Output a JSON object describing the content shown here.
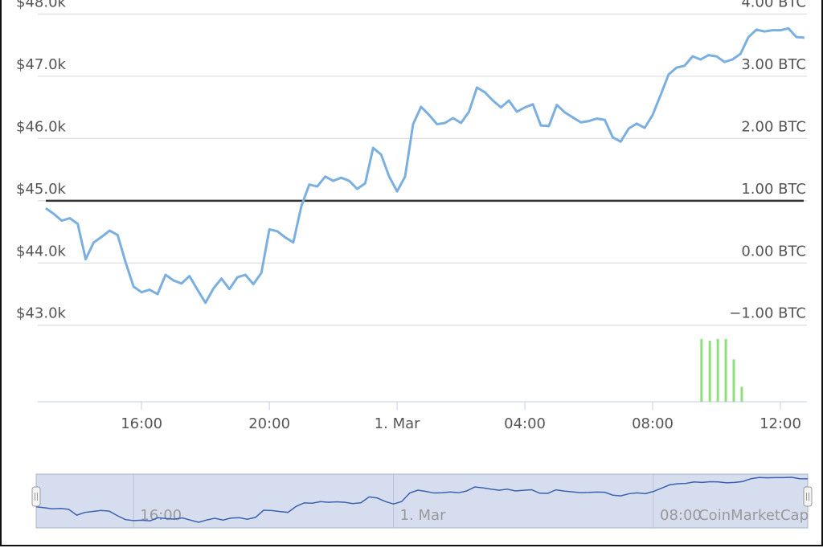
{
  "chart_data": {
    "type": "line",
    "xlim": [
      12.75,
      36.83
    ],
    "xticks": [
      {
        "value": 16,
        "label": "16:00"
      },
      {
        "value": 20,
        "label": "20:00"
      },
      {
        "value": 24,
        "label": "1. Mar"
      },
      {
        "value": 28,
        "label": "04:00"
      },
      {
        "value": 32,
        "label": "08:00"
      },
      {
        "value": 36,
        "label": "12:00"
      }
    ],
    "ylim": [
      41.77,
      48.0
    ],
    "yticks": [
      {
        "value": 43,
        "label": "$43.0k"
      },
      {
        "value": 44,
        "label": "$44.0k"
      },
      {
        "value": 45,
        "label": "$45.0k"
      },
      {
        "value": 46,
        "label": "$46.0k"
      },
      {
        "value": 47,
        "label": "$47.0k"
      },
      {
        "value": 48,
        "label": "$48.0k"
      }
    ],
    "y2lim": [
      -2.23,
      4.0
    ],
    "y2ticks": [
      {
        "value": -1,
        "label": "−1.00 BTC"
      },
      {
        "value": 0,
        "label": "0.00 BTC"
      },
      {
        "value": 1,
        "label": "1.00 BTC"
      },
      {
        "value": 2,
        "label": "2.00 BTC"
      },
      {
        "value": 3,
        "label": "3.00 BTC"
      },
      {
        "value": 4,
        "label": "4.00 BTC"
      }
    ],
    "grid": true,
    "reference_line": {
      "value": 45.0,
      "color": "#333333"
    },
    "series": [
      {
        "type": "line",
        "color": "#7aafdf",
        "x": [
          13.0,
          13.25,
          13.5,
          13.75,
          14.0,
          14.25,
          14.5,
          14.75,
          15.0,
          15.25,
          15.5,
          15.75,
          16.0,
          16.25,
          16.5,
          16.75,
          17.0,
          17.25,
          17.5,
          17.75,
          18.0,
          18.25,
          18.5,
          18.75,
          19.0,
          19.25,
          19.5,
          19.75,
          20.0,
          20.25,
          20.5,
          20.75,
          21.0,
          21.25,
          21.5,
          21.75,
          22.0,
          22.25,
          22.5,
          22.75,
          23.0,
          23.25,
          23.5,
          23.75,
          24.0,
          24.25,
          24.5,
          24.75,
          25.0,
          25.25,
          25.5,
          25.75,
          26.0,
          26.25,
          26.5,
          26.75,
          27.0,
          27.25,
          27.5,
          27.75,
          28.0,
          28.25,
          28.5,
          28.75,
          29.0,
          29.25,
          29.5,
          29.75,
          30.0,
          30.25,
          30.5,
          30.75,
          31.0,
          31.25,
          31.5,
          31.75,
          32.0,
          32.25,
          32.5,
          32.75,
          33.0,
          33.25,
          33.5,
          33.75,
          34.0,
          34.25,
          34.5,
          34.75,
          35.0,
          35.25,
          35.5,
          35.75,
          36.0,
          36.25,
          36.5,
          36.75
        ],
        "values": [
          44.88,
          44.79,
          44.68,
          44.72,
          44.63,
          44.06,
          44.33,
          44.42,
          44.52,
          44.45,
          44.01,
          43.62,
          43.53,
          43.57,
          43.5,
          43.81,
          43.72,
          43.67,
          43.79,
          43.57,
          43.36,
          43.59,
          43.75,
          43.58,
          43.77,
          43.81,
          43.66,
          43.84,
          44.54,
          44.51,
          44.41,
          44.33,
          44.91,
          45.26,
          45.23,
          45.39,
          45.32,
          45.37,
          45.32,
          45.19,
          45.28,
          45.85,
          45.74,
          45.39,
          45.15,
          45.39,
          46.23,
          46.51,
          46.38,
          46.23,
          46.25,
          46.33,
          46.25,
          46.43,
          46.82,
          46.74,
          46.61,
          46.5,
          46.61,
          46.43,
          46.5,
          46.55,
          46.21,
          46.2,
          46.54,
          46.42,
          46.34,
          46.26,
          46.28,
          46.32,
          46.3,
          46.02,
          45.95,
          46.16,
          46.24,
          46.17,
          46.38,
          46.7,
          47.03,
          47.14,
          47.17,
          47.32,
          47.27,
          47.34,
          47.32,
          47.23,
          47.27,
          47.36,
          47.63,
          47.75,
          47.72,
          47.74,
          47.74,
          47.77,
          47.63,
          47.62
        ]
      },
      {
        "type": "bar",
        "axis": "y2",
        "color": "#8ee07a",
        "x": [
          33.53,
          33.79,
          34.04,
          34.29,
          34.54,
          34.79
        ],
        "values": [
          -1.22,
          -1.25,
          -1.22,
          -1.22,
          -1.55,
          -1.99
        ]
      }
    ],
    "navigator": {
      "color": "#3a62b0",
      "xticks": [
        {
          "value": 16,
          "label": "16:00"
        },
        {
          "value": 24,
          "label": "1. Mar"
        },
        {
          "value": 32,
          "label": "08:00"
        }
      ]
    },
    "credit": "CoinMarketCap"
  }
}
